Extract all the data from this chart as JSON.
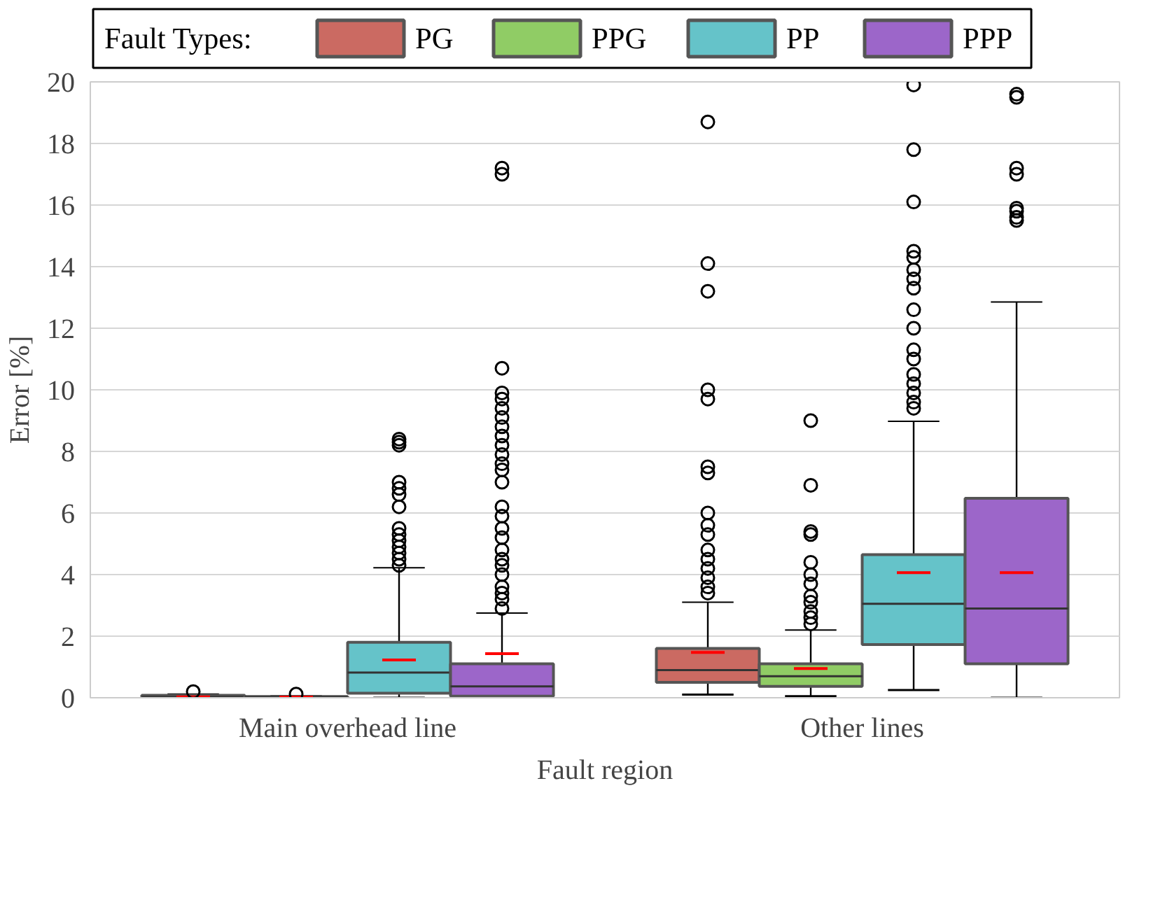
{
  "chart_data": {
    "type": "box",
    "xlabel": "Fault region",
    "ylabel": "Error [%]",
    "legend_title": "Fault Types:",
    "categories": [
      "Main overhead line",
      "Other lines"
    ],
    "ylim": [
      0,
      20
    ],
    "yticks": [
      0,
      2,
      4,
      6,
      8,
      10,
      12,
      14,
      16,
      18,
      20
    ],
    "grid": "y",
    "legend": "top",
    "series": [
      {
        "name": "PG",
        "color": "#cb6a62",
        "boxes": [
          {
            "low": 0,
            "q1": 0.01,
            "median": 0.03,
            "q3": 0.08,
            "high": 0.12,
            "mean": 0.03,
            "outliers": [
              0.2
            ]
          },
          {
            "low": 0.1,
            "q1": 0.5,
            "median": 0.9,
            "q3": 1.6,
            "high": 3.1,
            "mean": 1.47,
            "outliers": [
              18.7,
              14.1,
              13.2,
              10.0,
              9.7,
              7.5,
              7.3,
              6.0,
              5.6,
              5.3,
              4.8,
              4.5,
              4.2,
              3.9,
              3.6,
              3.4
            ]
          }
        ]
      },
      {
        "name": "PPG",
        "color": "#90cc65",
        "boxes": [
          {
            "low": 0,
            "q1": 0.01,
            "median": 0.02,
            "q3": 0.04,
            "high": 0.06,
            "mean": 0.02,
            "outliers": [
              0.12
            ]
          },
          {
            "low": 0.05,
            "q1": 0.37,
            "median": 0.7,
            "q3": 1.1,
            "high": 2.2,
            "mean": 0.95,
            "outliers": [
              9.0,
              6.9,
              5.4,
              5.3,
              4.4,
              4.0,
              3.7,
              3.3,
              3.1,
              2.8,
              2.6,
              2.4
            ]
          }
        ]
      },
      {
        "name": "PP",
        "color": "#65c3c9",
        "boxes": [
          {
            "low": 0,
            "q1": 0.15,
            "median": 0.82,
            "q3": 1.8,
            "high": 4.22,
            "mean": 1.23,
            "outliers": [
              8.4,
              8.3,
              8.2,
              7.0,
              6.8,
              6.6,
              6.2,
              5.5,
              5.3,
              5.1,
              4.9,
              4.7,
              4.5,
              4.3
            ]
          },
          {
            "low": 0.25,
            "q1": 1.73,
            "median": 3.05,
            "q3": 4.65,
            "high": 8.98,
            "mean": 4.06,
            "outliers": [
              19.9,
              17.8,
              16.1,
              14.5,
              14.3,
              13.9,
              13.6,
              13.3,
              12.6,
              12.0,
              11.3,
              11.0,
              10.5,
              10.2,
              9.9,
              9.6,
              9.4
            ]
          }
        ]
      },
      {
        "name": "PPP",
        "color": "#9c66c9",
        "boxes": [
          {
            "low": 0,
            "q1": 0.05,
            "median": 0.37,
            "q3": 1.1,
            "high": 2.75,
            "mean": 1.43,
            "outliers": [
              17.2,
              17.0,
              10.7,
              9.9,
              9.7,
              9.4,
              9.1,
              8.8,
              8.5,
              8.2,
              7.9,
              7.6,
              7.4,
              7.0,
              6.2,
              5.9,
              5.5,
              5.2,
              4.8,
              4.5,
              4.3,
              4.0,
              3.6,
              3.4,
              3.2,
              2.9
            ]
          },
          {
            "low": 0,
            "q1": 1.1,
            "median": 2.9,
            "q3": 6.48,
            "high": 12.85,
            "mean": 4.06,
            "outliers": [
              19.6,
              19.5,
              17.2,
              17.0,
              15.9,
              15.8,
              15.6,
              15.5
            ]
          }
        ]
      }
    ]
  }
}
